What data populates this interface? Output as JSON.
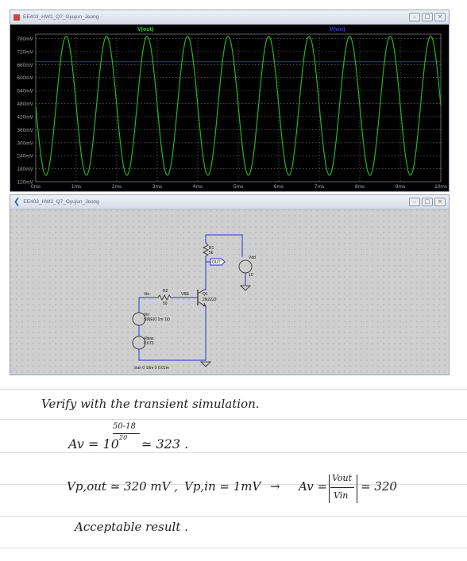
{
  "plot_window": {
    "title": "EE403_HW2_Q7_Gyujun_Jeong",
    "trace_label": "V(out)",
    "trace_label_2": "V(vin)",
    "colors": {
      "background": "#000000",
      "trace": "#22b522",
      "trace2": "#3030d8",
      "grid": "#7a7a7a",
      "axis_text": "#a8a8a8",
      "label": "#2fd02f",
      "label2": "#3a3af0"
    }
  },
  "chart_data": {
    "type": "line",
    "x_unit": "ms",
    "x_range": [
      0,
      10
    ],
    "y_range": [
      120,
      800
    ],
    "x_ticks": [
      "0ms",
      "1ms",
      "2ms",
      "3ms",
      "4ms",
      "5ms",
      "6ms",
      "7ms",
      "8ms",
      "9ms",
      "10ms"
    ],
    "y_ticks": [
      "780mV",
      "720mV",
      "660mV",
      "600mV",
      "540mV",
      "480mV",
      "420mV",
      "360mV",
      "300mV",
      "240mV",
      "180mV",
      "120mV"
    ],
    "y_tick_values": [
      780,
      720,
      660,
      600,
      540,
      480,
      420,
      360,
      300,
      240,
      180,
      120
    ],
    "grid": true,
    "series": [
      {
        "name": "V(out)",
        "kind": "sine",
        "offset_mV": 470,
        "amplitude_mV": 320,
        "frequency_khz": 1,
        "phase_deg": 180
      },
      {
        "name": "V(vin)",
        "kind": "flat",
        "value_mV": 673
      }
    ]
  },
  "schematic_window": {
    "title": "EE403_HW2_Q7_Gyujun_Jeong",
    "labels": {
      "r1": "R1",
      "r1_val": "5k",
      "out": "OUT",
      "vdd": "Vdd",
      "vdd_val": "10",
      "vin_net": "Vin",
      "r2": "R2",
      "r2_val": "50",
      "vbe_net": "VBE",
      "q1": "Q1",
      "q1_model": "2N2222",
      "vin_src": "Vin",
      "vin_src_val": "SINE(0 1m 1k)",
      "vbias": "Vbias",
      "vbias_val": "0.673",
      "tran": ".tran 0 10m 0 0.01m"
    }
  },
  "notes": {
    "line1": "Verify with the transient simulation.",
    "av_prefix": "Av = 10",
    "exp_num": "50-18",
    "exp_den": "20",
    "av_result": "≃ 323 .",
    "vpout": "Vp,out ≃ 320 mV ,",
    "vpin": "Vp,in = 1mV",
    "arrow": "→",
    "av2_prefix": "Av =",
    "frac_num": "Vout",
    "frac_den": "Vin",
    "av2_result": "= 320",
    "conclusion": "Acceptable result ."
  }
}
